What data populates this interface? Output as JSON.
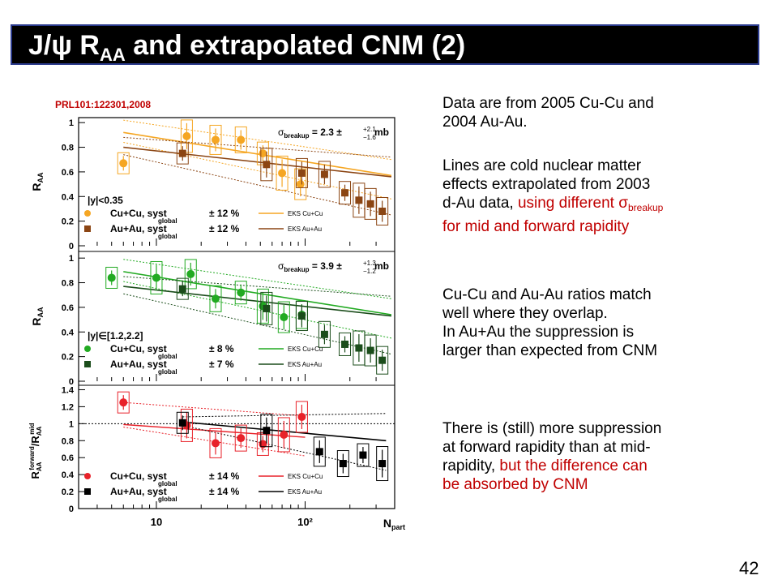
{
  "title": {
    "main": "J/ψ R",
    "sub": "AA",
    "rest": " and extrapolated CNM (2)"
  },
  "reference": "PRL101:122301,2008",
  "text": {
    "p1_l1": "Data are from 2005 Cu-Cu and",
    "p1_l2": "2004 Au-Au.",
    "p2_l1": "Lines are cold nuclear matter",
    "p2_l2": "effects extrapolated from 2003",
    "p2_l3a": "d-Au data, ",
    "p2_l3b": "using different σ",
    "p2_l3c": "breakup",
    "p2_l4": "for mid and forward rapidity",
    "p3_l1": "Cu-Cu and Au-Au ratios match",
    "p3_l2": "well where they overlap.",
    "p3_l3": "In Au+Au the suppression is",
    "p3_l4": "larger than expected from CNM",
    "p4_l1": "There is (still) more suppression",
    "p4_l2": "at forward rapidity than at mid-",
    "p4_l3a": "rapidity, ",
    "p4_l3b": "but the difference can",
    "p4_l4": "be absorbed by CNM"
  },
  "page_number": "42",
  "colors": {
    "cu_mid": "#f5a623",
    "au_mid": "#8b4513",
    "cu_fwd": "#22aa22",
    "au_fwd": "#1b4d1b",
    "cu_ratio": "#e8222a",
    "au_ratio": "#000000",
    "accent": "#c00000"
  },
  "chart_data": [
    {
      "type": "scatter",
      "ylabel": "R_AA",
      "ylim": [
        0,
        1.1
      ],
      "yticks": [
        "0",
        "0.2",
        "0.4",
        "0.6",
        "0.8",
        "1"
      ],
      "rapidity_label": "|y|<0.35",
      "sigma_label": "σ_breakup = 2.3 +2.1 −1.6 mb",
      "legend": [
        "Cu+Cu, syst global ± 12 %",
        "Au+Au, syst global ± 12 %",
        "EKS Cu+Cu",
        "EKS Au+Au"
      ],
      "series": [
        {
          "name": "Cu+Cu",
          "x": [
            6,
            16,
            25,
            37,
            52,
            70,
            93
          ],
          "y": [
            0.67,
            0.89,
            0.86,
            0.86,
            0.75,
            0.59,
            0.5
          ]
        },
        {
          "name": "Au+Au",
          "x": [
            15,
            55,
            95,
            135,
            185,
            230,
            275,
            330
          ],
          "y": [
            0.75,
            0.66,
            0.59,
            0.58,
            0.43,
            0.37,
            0.34,
            0.28
          ]
        }
      ]
    },
    {
      "type": "scatter",
      "ylabel": "R_AA",
      "ylim": [
        0,
        1.1
      ],
      "yticks": [
        "0",
        "0.2",
        "0.4",
        "0.6",
        "0.8",
        "1"
      ],
      "rapidity_label": "|y|∈[1.2,2.2]",
      "sigma_label": "σ_breakup = 3.9 +1.3 −1.2 mb",
      "legend": [
        "Cu+Cu, syst global ± 8 %",
        "Au+Au, syst global ± 7 %",
        "EKS Cu+Cu",
        "EKS Au+Au"
      ],
      "series": [
        {
          "name": "Cu+Cu",
          "x": [
            5,
            10,
            17,
            25,
            37,
            52,
            72,
            95
          ],
          "y": [
            0.84,
            0.84,
            0.87,
            0.67,
            0.72,
            0.61,
            0.52,
            0.54
          ]
        },
        {
          "name": "Au+Au",
          "x": [
            15,
            55,
            95,
            135,
            185,
            230,
            275,
            330
          ],
          "y": [
            0.75,
            0.59,
            0.53,
            0.38,
            0.3,
            0.27,
            0.25,
            0.17
          ]
        }
      ]
    },
    {
      "type": "scatter",
      "ylabel": "R_AA forward / R_AA mid",
      "xlabel": "N_part",
      "xlog": true,
      "xtick_labels": [
        "10",
        "10²"
      ],
      "ylim": [
        0,
        1.5
      ],
      "yticks": [
        "0",
        "0.2",
        "0.4",
        "0.6",
        "0.8",
        "1",
        "1.2",
        "1.4"
      ],
      "legend": [
        "Cu+Cu, syst global ± 14 %",
        "Au+Au, syst global ± 14 %",
        "EKS Cu+Cu",
        "EKS Au+Au"
      ],
      "series": [
        {
          "name": "Cu+Cu",
          "x": [
            6,
            16,
            25,
            37,
            52,
            72,
            95
          ],
          "y": [
            1.25,
            0.98,
            0.77,
            0.83,
            0.76,
            0.87,
            1.08
          ]
        },
        {
          "name": "Au+Au",
          "x": [
            15,
            55,
            125,
            180,
            245,
            330
          ],
          "y": [
            1.01,
            0.92,
            0.67,
            0.53,
            0.63,
            0.53
          ]
        }
      ]
    }
  ]
}
